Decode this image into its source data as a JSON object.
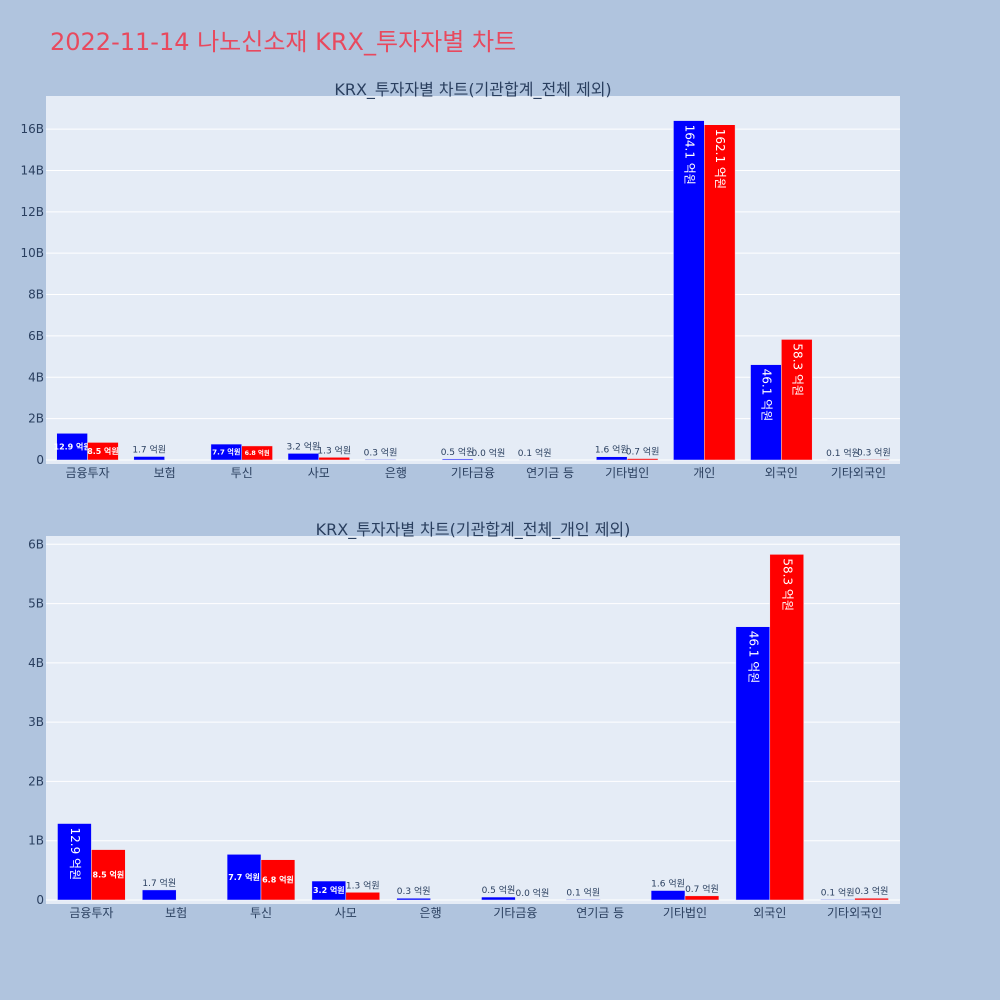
{
  "page": {
    "title": "2022-11-14 나노신소재 KRX_투자자별 차트"
  },
  "colors": {
    "background": "#b0c4de",
    "plot_bg": "#e5ecf6",
    "buy": "#0000ff",
    "sell": "#ff0000",
    "title": "#e8495e"
  },
  "chart_data": [
    {
      "type": "bar",
      "title": "KRX_투자자별 차트(기관합계_전체 제외)",
      "categories": [
        "금융투자",
        "보험",
        "투신",
        "사모",
        "은행",
        "기타금융",
        "연기금 등",
        "기타법인",
        "개인",
        "외국인",
        "기타외국인"
      ],
      "series": [
        {
          "color": "#0000ff",
          "values": [
            1290000000,
            170000000,
            770000000,
            320000000,
            30000000,
            50000000,
            10000000,
            160000000,
            16410000000,
            4610000000,
            10000000
          ],
          "labels": [
            "12.9 억원",
            "1.7 억원",
            "7.7 억원",
            "3.2 억원",
            "0.3 억원",
            "0.5 억원",
            "0.1 억원",
            "1.6 억원",
            "164.1 억원",
            "46.1 억원",
            "0.1 억원"
          ]
        },
        {
          "color": "#ff0000",
          "values": [
            850000000,
            0,
            680000000,
            130000000,
            0,
            0,
            0,
            70000000,
            16210000000,
            5830000000,
            30000000
          ],
          "labels": [
            "8.5 억원",
            "",
            "6.8 억원",
            "1.3 억원",
            "",
            "0.0 억원",
            "",
            "0.7 억원",
            "162.1 억원",
            "58.3 억원",
            "0.3 억원"
          ]
        }
      ],
      "yticks": [
        0,
        2000000000,
        4000000000,
        6000000000,
        8000000000,
        10000000000,
        12000000000,
        14000000000,
        16000000000
      ],
      "ytick_labels": [
        "0",
        "2B",
        "4B",
        "6B",
        "8B",
        "10B",
        "12B",
        "14B",
        "16B"
      ],
      "ylim": [
        0,
        17600000000
      ],
      "grid": true
    },
    {
      "type": "bar",
      "title": "KRX_투자자별 차트(기관합계_전체_개인 제외)",
      "categories": [
        "금융투자",
        "보험",
        "투신",
        "사모",
        "은행",
        "기타금융",
        "연기금 등",
        "기타법인",
        "외국인",
        "기타외국인"
      ],
      "series": [
        {
          "color": "#0000ff",
          "values": [
            1290000000,
            170000000,
            770000000,
            320000000,
            30000000,
            50000000,
            10000000,
            160000000,
            4610000000,
            10000000
          ],
          "labels": [
            "12.9 억원",
            "1.7 억원",
            "7.7 억원",
            "3.2 억원",
            "0.3 억원",
            "0.5 억원",
            "0.1 억원",
            "1.6 억원",
            "46.1 억원",
            "0.1 억원"
          ]
        },
        {
          "color": "#ff0000",
          "values": [
            850000000,
            0,
            680000000,
            130000000,
            0,
            0,
            0,
            70000000,
            5830000000,
            30000000
          ],
          "labels": [
            "8.5 억원",
            "",
            "6.8 억원",
            "1.3 억원",
            "",
            "0.0 억원",
            "",
            "0.7 억원",
            "58.3 억원",
            "0.3 억원"
          ]
        }
      ],
      "yticks": [
        0,
        1000000000,
        2000000000,
        3000000000,
        4000000000,
        5000000000,
        6000000000
      ],
      "ytick_labels": [
        "0",
        "1B",
        "2B",
        "3B",
        "4B",
        "5B",
        "6B"
      ],
      "ylim": [
        0,
        6140000000
      ],
      "grid": true
    }
  ]
}
